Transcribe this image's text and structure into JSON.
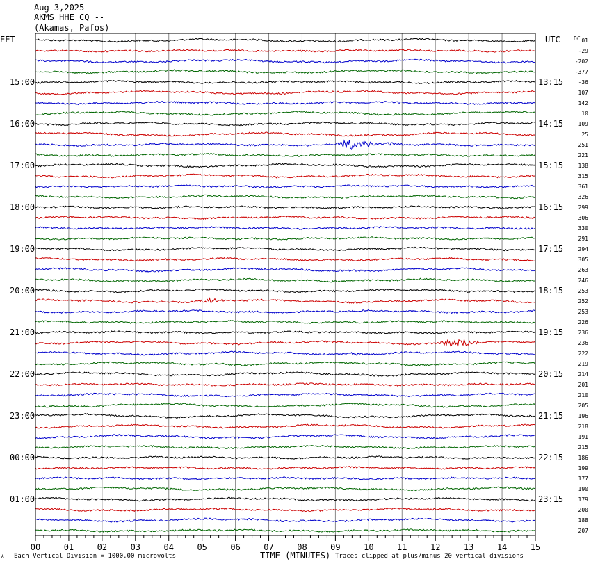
{
  "header": {
    "date": "Aug 3,2025",
    "station": "AKMS HHE CQ --",
    "location": "(Akamas, Pafos)"
  },
  "footer": {
    "corner_mark": "A",
    "scale_note": "Each Vertical Division = 1000.00 microvolts",
    "clip_note": "Traces clipped at plus/minus 20 vertical divisions"
  },
  "chart_data": {
    "type": "line",
    "left_axis_label": "EET",
    "right_axis_label": "UTC",
    "dc_label": "DC",
    "xlabel": "TIME (MINUTES)",
    "xlim": [
      0,
      15
    ],
    "x_ticks": [
      "00",
      "01",
      "02",
      "03",
      "04",
      "05",
      "06",
      "07",
      "08",
      "09",
      "10",
      "11",
      "12",
      "13",
      "14",
      "15"
    ],
    "grid": true,
    "trace_colors": [
      "#000000",
      "#cc0000",
      "#0000cc",
      "#006600"
    ],
    "left_hour_labels": [
      {
        "row": 4,
        "label": "15:00"
      },
      {
        "row": 8,
        "label": "16:00"
      },
      {
        "row": 12,
        "label": "17:00"
      },
      {
        "row": 16,
        "label": "18:00"
      },
      {
        "row": 20,
        "label": "19:00"
      },
      {
        "row": 24,
        "label": "20:00"
      },
      {
        "row": 28,
        "label": "21:00"
      },
      {
        "row": 32,
        "label": "22:00"
      },
      {
        "row": 36,
        "label": "23:00"
      },
      {
        "row": 40,
        "label": "00:00"
      },
      {
        "row": 44,
        "label": "01:00"
      }
    ],
    "right_hour_labels": [
      {
        "row": 4,
        "label": "13:15"
      },
      {
        "row": 8,
        "label": "14:15"
      },
      {
        "row": 12,
        "label": "15:15"
      },
      {
        "row": 16,
        "label": "16:15"
      },
      {
        "row": 20,
        "label": "17:15"
      },
      {
        "row": 24,
        "label": "18:15"
      },
      {
        "row": 28,
        "label": "19:15"
      },
      {
        "row": 32,
        "label": "20:15"
      },
      {
        "row": 36,
        "label": "21:15"
      },
      {
        "row": 40,
        "label": "22:15"
      },
      {
        "row": 44,
        "label": "23:15"
      }
    ],
    "dc_offsets": [
      "01",
      "-29",
      "-202",
      "-377",
      "-36",
      "107",
      "142",
      "10",
      "109",
      "25",
      "251",
      "221",
      "138",
      "315",
      "361",
      "326",
      "299",
      "306",
      "330",
      "291",
      "294",
      "305",
      "263",
      "246",
      "253",
      "252",
      "253",
      "226",
      "236",
      "236",
      "222",
      "219",
      "214",
      "201",
      "210",
      "205",
      "196",
      "218",
      "191",
      "215",
      "186",
      "199",
      "177",
      "190",
      "179",
      "200",
      "188",
      "207"
    ],
    "events": [
      {
        "row": 10,
        "start_min": 9.0,
        "peak_min": 9.4,
        "end_min": 11.5,
        "amplitude": 8
      },
      {
        "row": 25,
        "start_min": 4.9,
        "peak_min": 5.2,
        "end_min": 6.2,
        "amplitude": 4
      },
      {
        "row": 29,
        "start_min": 11.9,
        "peak_min": 12.7,
        "end_min": 14.2,
        "amplitude": 7
      },
      {
        "row": 30,
        "start_min": 9.2,
        "peak_min": 9.6,
        "end_min": 10.0,
        "amplitude": 2
      },
      {
        "row": 31,
        "start_min": 5.2,
        "peak_min": 5.5,
        "end_min": 5.9,
        "amplitude": 2
      }
    ]
  }
}
